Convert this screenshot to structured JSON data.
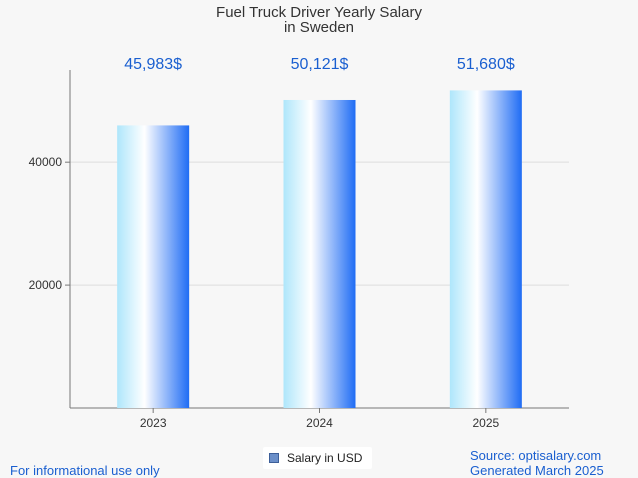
{
  "chart_data": {
    "type": "bar",
    "title_line1": "Fuel Truck Driver Yearly Salary",
    "title_line2": "in Sweden",
    "categories": [
      "2023",
      "2024",
      "2025"
    ],
    "series": [
      {
        "name": "Salary in USD",
        "values": [
          45983,
          50121,
          51680
        ]
      }
    ],
    "data_labels": [
      "45,983$",
      "50,121$",
      "51,680$"
    ],
    "y_ticks": [
      20000,
      40000
    ],
    "ylim": [
      0,
      55000
    ],
    "grid": true,
    "legend_position": "bottom-center"
  },
  "footer": {
    "disclaimer": "For informational use only",
    "source": "Source: optisalary.com",
    "generated": "Generated March 2025"
  },
  "colors": {
    "bar_light": "#aee6fb",
    "bar_white": "#ffffff",
    "bar_dark": "#1f6cf4",
    "label": "#1a5fd0",
    "axis": "#777777",
    "grid": "#dddddd"
  }
}
